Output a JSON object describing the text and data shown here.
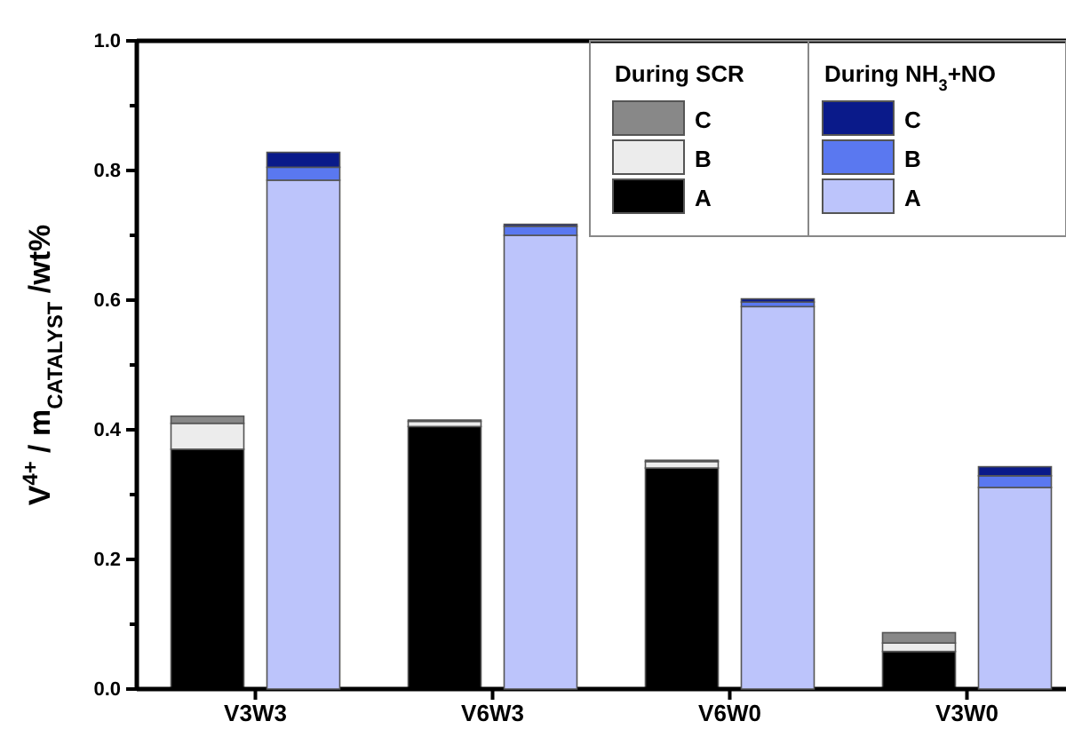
{
  "chart_data": [
    {
      "type": "bar",
      "stacked": true,
      "ylabel": "V$^{4+}$ / m$_{CATALYST}$ /wt%",
      "categories": [
        "V3W3",
        "V6W3",
        "V6W0",
        "V3W0"
      ],
      "legend_title": "During SCR",
      "legend": "top right",
      "ylim": [
        0,
        1
      ],
      "yticks": [
        {
          "value": 0,
          "label": "0.0"
        },
        {
          "value": 0.1,
          "label": null
        },
        {
          "value": 0.2,
          "label": "0.2"
        },
        {
          "value": 0.3,
          "label": null
        },
        {
          "value": 0.4,
          "label": "0.4"
        },
        {
          "value": 0.5,
          "label": null
        },
        {
          "value": 0.6,
          "label": "0.6"
        },
        {
          "value": 0.7,
          "label": null
        },
        {
          "value": 0.8,
          "label": "0.8"
        },
        {
          "value": 0.9,
          "label": null
        },
        {
          "value": 1,
          "label": "1.0"
        }
      ],
      "series": [
        {
          "name": "A",
          "color": "#000000",
          "values": [
            0.37,
            0.405,
            0.341,
            0.058
          ]
        },
        {
          "name": "B",
          "color": "#ececec",
          "values": [
            0.04,
            0.008,
            0.01,
            0.013
          ]
        },
        {
          "name": "C",
          "color": "#888888",
          "values": [
            0.011,
            0.002,
            0.002,
            0.016
          ]
        }
      ]
    },
    {
      "type": "bar",
      "stacked": true,
      "categories": [
        "V3W3",
        "V6W3",
        "V6W0",
        "V3W0"
      ],
      "legend_title": "During NH$_{3}$+NO",
      "legend": "top right",
      "ylim": [
        0,
        1
      ],
      "tick_labels": false,
      "series": [
        {
          "name": "A",
          "color": "#bcc4fb",
          "values": [
            0.785,
            0.7,
            0.59,
            0.311
          ]
        },
        {
          "name": "B",
          "color": "#5a78f0",
          "values": [
            0.02,
            0.014,
            0.007,
            0.018
          ]
        },
        {
          "name": "C",
          "color": "#0a1a8a",
          "values": [
            0.023,
            0.003,
            0.005,
            0.014
          ]
        }
      ]
    }
  ]
}
